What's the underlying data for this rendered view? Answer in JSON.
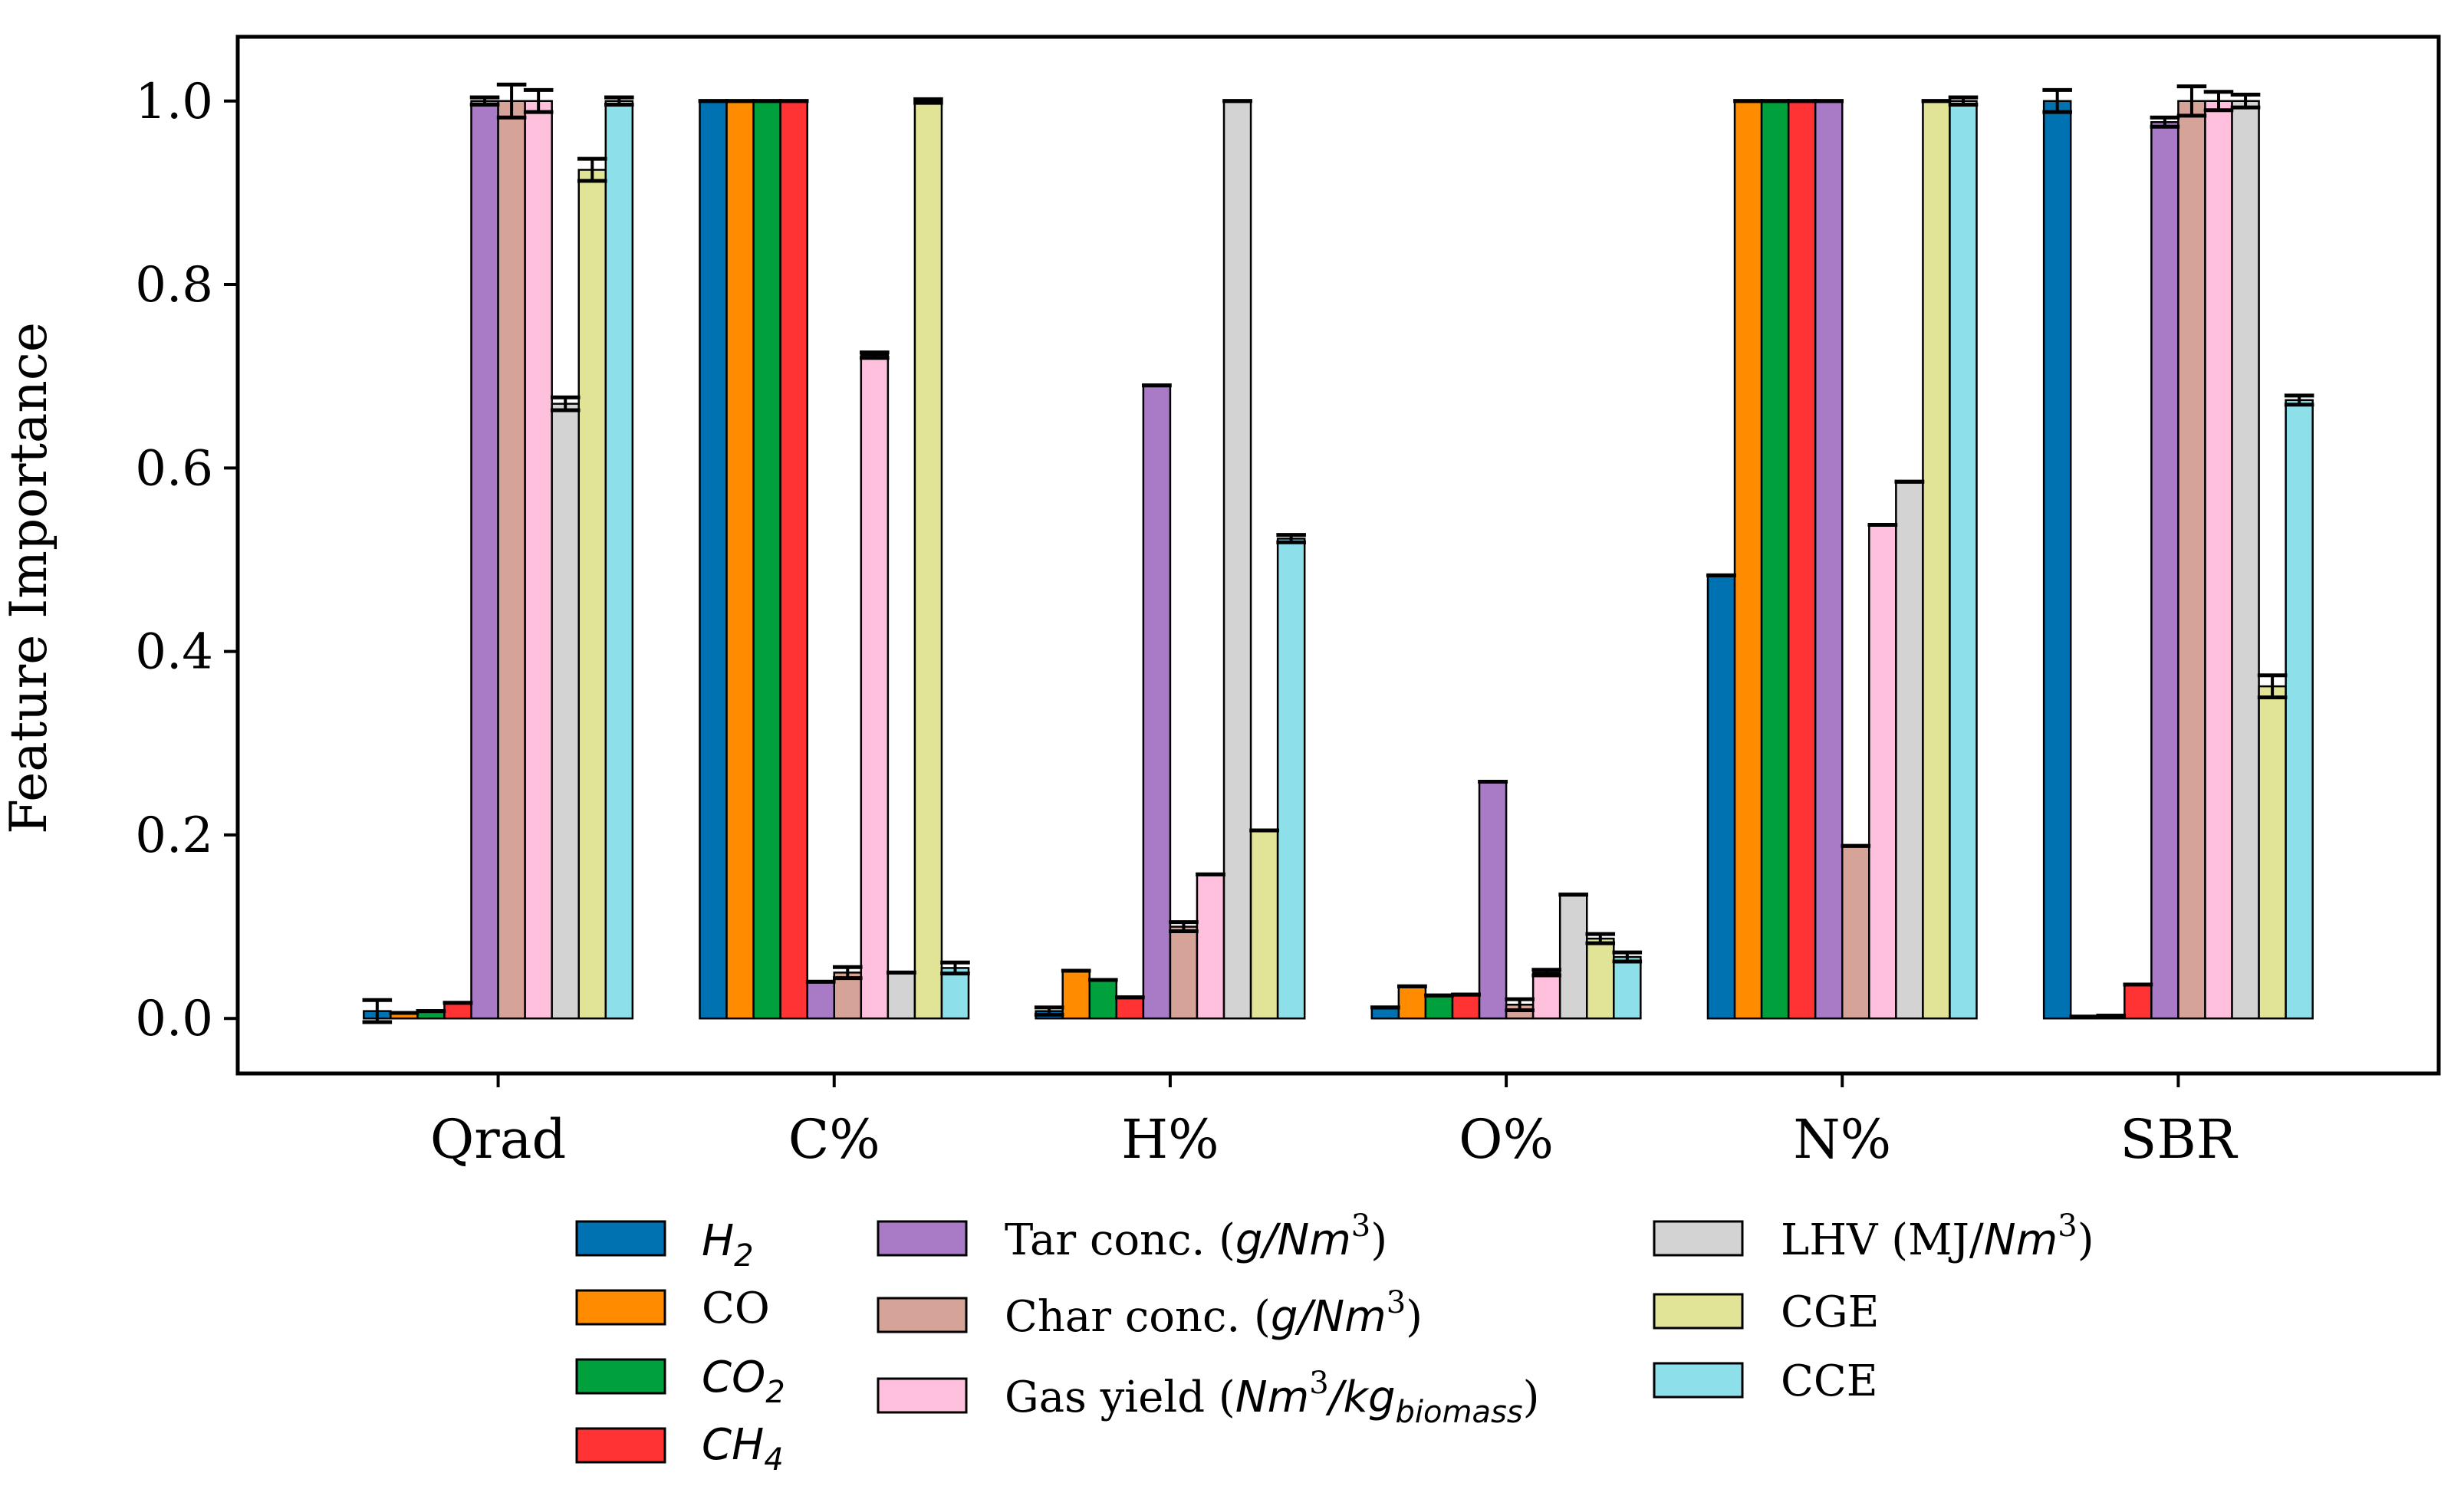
{
  "chart_data": {
    "type": "bar",
    "title": "",
    "xlabel": "",
    "ylabel": "Feature Importance",
    "ylim": [
      -0.06,
      1.07
    ],
    "yticks": [
      0.0,
      0.2,
      0.4,
      0.6,
      0.8,
      1.0
    ],
    "ytick_labels": [
      "0.0",
      "0.2",
      "0.4",
      "0.6",
      "0.8",
      "1.0"
    ],
    "categories": [
      "Qrad",
      "C%",
      "H%",
      "O%",
      "N%",
      "SBR"
    ],
    "series": [
      {
        "name": "H2",
        "color": "#0072B2",
        "values": [
          0.008,
          1.0,
          0.008,
          0.012,
          0.483,
          1.0
        ],
        "errors": [
          0.012,
          0.0,
          0.004,
          0.0,
          0.0,
          0.012
        ]
      },
      {
        "name": "CO",
        "color": "#FF8C00",
        "values": [
          0.006,
          1.0,
          0.052,
          0.035,
          1.0,
          0.002
        ],
        "errors": [
          0.0,
          0.0,
          0.0,
          0.0,
          0.0,
          0.0
        ]
      },
      {
        "name": "CO2",
        "color": "#00A03C",
        "values": [
          0.008,
          1.0,
          0.042,
          0.025,
          1.0,
          0.003
        ],
        "errors": [
          0.0,
          0.0,
          0.0,
          0.0,
          0.0,
          0.0
        ]
      },
      {
        "name": "CH4",
        "color": "#FF3333",
        "values": [
          0.017,
          1.0,
          0.023,
          0.026,
          1.0,
          0.037
        ],
        "errors": [
          0.0,
          0.0,
          0.0,
          0.0,
          0.0,
          0.0
        ]
      },
      {
        "name": "Tar conc. (g/Nm3)",
        "color": "#A97BC6",
        "values": [
          1.0,
          0.04,
          0.69,
          0.258,
          1.0,
          0.977
        ],
        "errors": [
          0.004,
          0.0,
          0.0,
          0.0,
          0.0,
          0.005
        ]
      },
      {
        "name": "Char conc. (g/Nm3)",
        "color": "#D6A399",
        "values": [
          1.0,
          0.05,
          0.1,
          0.015,
          0.188,
          1.0
        ],
        "errors": [
          0.018,
          0.006,
          0.005,
          0.006,
          0.0,
          0.016
        ]
      },
      {
        "name": "Gas yield (Nm3/kgbiomass)",
        "color": "#FFC0DD",
        "values": [
          1.0,
          0.723,
          0.157,
          0.05,
          0.538,
          1.0
        ],
        "errors": [
          0.012,
          0.003,
          0.0,
          0.003,
          0.0,
          0.01
        ]
      },
      {
        "name": "LHV (MJ/Nm3)",
        "color": "#D3D3D3",
        "values": [
          0.67,
          0.05,
          1.0,
          0.135,
          0.585,
          1.0
        ],
        "errors": [
          0.007,
          0.0,
          0.0,
          0.0,
          0.0,
          0.007
        ]
      },
      {
        "name": "CGE",
        "color": "#E1E396",
        "values": [
          0.925,
          1.0,
          0.205,
          0.087,
          1.0,
          0.362
        ],
        "errors": [
          0.012,
          0.002,
          0.0,
          0.005,
          0.0,
          0.012
        ]
      },
      {
        "name": "CCE",
        "color": "#8DDFEA",
        "values": [
          1.0,
          0.055,
          0.523,
          0.067,
          1.0,
          0.674
        ],
        "errors": [
          0.004,
          0.006,
          0.004,
          0.005,
          0.004,
          0.005
        ]
      }
    ],
    "legend_position": "bottom",
    "grid": false
  },
  "legend": {
    "h2": {
      "base": "H",
      "sub": "2"
    },
    "co": {
      "base": "CO"
    },
    "co2": {
      "base": "CO",
      "sub": "2"
    },
    "ch4": {
      "base": "CH",
      "sub": "4"
    },
    "tar": {
      "pre": "Tar conc. (",
      "unit": "g/Nm",
      "sup": "3",
      "post": ")"
    },
    "char": {
      "pre": "Char conc. (",
      "unit": "g/Nm",
      "sup": "3",
      "post": ")"
    },
    "gas": {
      "pre": "Gas yield (",
      "unit": "Nm",
      "sup": "3",
      "unit2": "/kg",
      "sub": "biomass",
      "post": ")"
    },
    "lhv": {
      "pre": "LHV (MJ/",
      "unit": "Nm",
      "sup": "3",
      "post": ")"
    },
    "cge": {
      "base": "CGE"
    },
    "cce": {
      "base": "CCE"
    }
  }
}
